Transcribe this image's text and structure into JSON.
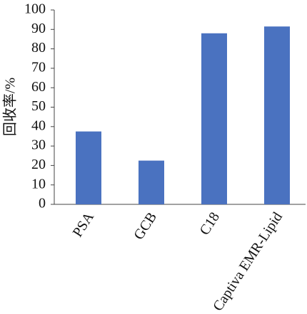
{
  "chart_data": {
    "type": "bar",
    "y_label": "回收率/%",
    "categories": [
      "PSA",
      "GCB",
      "C18",
      "Captiva EMR-Lipid"
    ],
    "values": [
      37.5,
      22.5,
      88,
      91.5
    ],
    "color": "#4a72c0",
    "ylim": [
      0,
      100
    ],
    "yticks": [
      0,
      10,
      20,
      30,
      40,
      50,
      60,
      70,
      80,
      90,
      100
    ],
    "grid": false
  }
}
